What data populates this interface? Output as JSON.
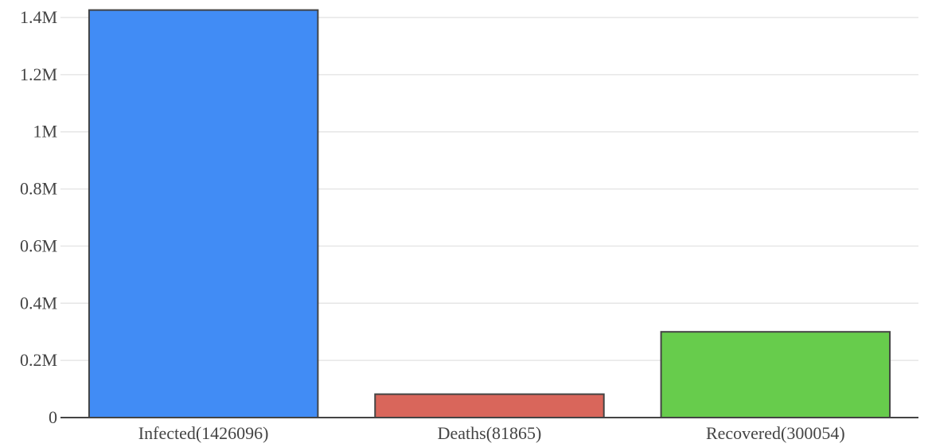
{
  "chart_data": {
    "type": "bar",
    "categories": [
      "Infected(1426096)",
      "Deaths(81865)",
      "Recovered(300054)"
    ],
    "values": [
      1426096,
      81865,
      300054
    ],
    "colors": [
      "#418cf5",
      "#d9665b",
      "#67cc4c"
    ],
    "bar_stroke": "#444444",
    "grid_color": "#e6e6e6",
    "axis_color": "#444444",
    "ylim": [
      0,
      1400000
    ],
    "yticks": [
      0,
      200000,
      400000,
      600000,
      800000,
      1000000,
      1200000,
      1400000
    ],
    "ytick_labels": [
      "0",
      "0.2M",
      "0.4M",
      "0.6M",
      "0.8M",
      "1M",
      "1.2M",
      "1.4M"
    ],
    "grid": true,
    "title": "",
    "xlabel": "",
    "ylabel": ""
  }
}
